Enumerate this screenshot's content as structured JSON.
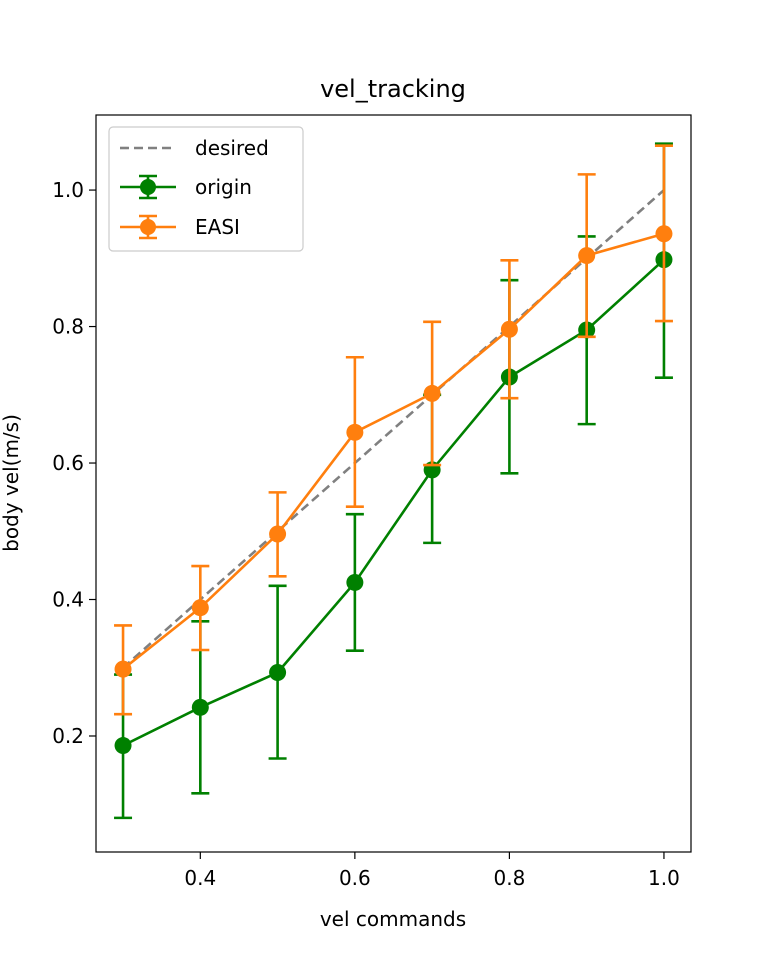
{
  "chart_data": {
    "type": "line",
    "title": "vel_tracking",
    "xlabel": "vel commands",
    "ylabel": "body vel(m/s)",
    "xlim": [
      0.265,
      1.035
    ],
    "ylim": [
      0.03,
      1.11
    ],
    "xticks": [
      0.4,
      0.6,
      0.8,
      1.0
    ],
    "xtick_labels": [
      "0.4",
      "0.6",
      "0.8",
      "1.0"
    ],
    "yticks": [
      0.2,
      0.4,
      0.6,
      0.8,
      1.0
    ],
    "ytick_labels": [
      "0.2",
      "0.4",
      "0.6",
      "0.8",
      "1.0"
    ],
    "grid": false,
    "legend_position": "top-left",
    "series": [
      {
        "name": "desired",
        "style": "dashed",
        "color": "#808080",
        "x": [
          0.3,
          1.0
        ],
        "y": [
          0.3,
          1.0
        ]
      },
      {
        "name": "origin",
        "style": "errorbar",
        "color": "#008000",
        "x": [
          0.3,
          0.4,
          0.5,
          0.6,
          0.7,
          0.8,
          0.9,
          1.0
        ],
        "y": [
          0.186,
          0.242,
          0.293,
          0.425,
          0.59,
          0.726,
          0.795,
          0.898
        ],
        "err_low": [
          0.08,
          0.116,
          0.167,
          0.325,
          0.483,
          0.585,
          0.657,
          0.725
        ],
        "err_high": [
          0.29,
          0.368,
          0.42,
          0.525,
          0.7,
          0.868,
          0.932,
          1.068
        ]
      },
      {
        "name": "EASI",
        "style": "errorbar",
        "color": "#ff7f0e",
        "x": [
          0.3,
          0.4,
          0.5,
          0.6,
          0.7,
          0.8,
          0.9,
          1.0
        ],
        "y": [
          0.298,
          0.388,
          0.496,
          0.645,
          0.702,
          0.796,
          0.904,
          0.936
        ],
        "err_low": [
          0.232,
          0.326,
          0.434,
          0.536,
          0.597,
          0.695,
          0.785,
          0.808
        ],
        "err_high": [
          0.362,
          0.449,
          0.557,
          0.755,
          0.807,
          0.897,
          1.023,
          1.065
        ]
      }
    ]
  }
}
